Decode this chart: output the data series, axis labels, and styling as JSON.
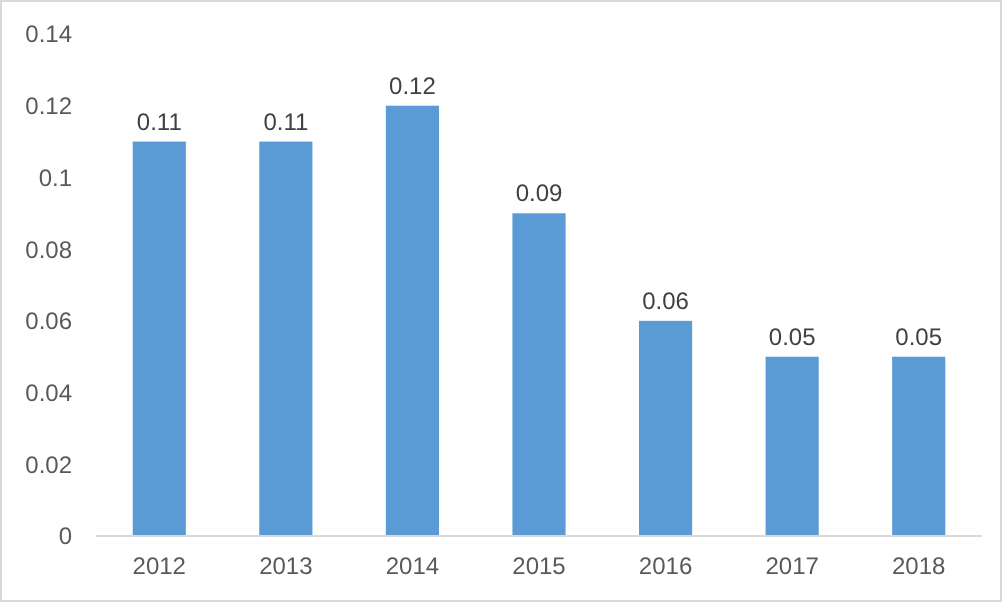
{
  "chart_data": {
    "type": "bar",
    "categories": [
      "2012",
      "2013",
      "2014",
      "2015",
      "2016",
      "2017",
      "2018"
    ],
    "values": [
      0.11,
      0.11,
      0.12,
      0.09,
      0.06,
      0.05,
      0.05
    ],
    "color": "#5b9bd5",
    "ylim": [
      0,
      0.14
    ],
    "yticks": [
      0,
      0.02,
      0.04,
      0.06,
      0.08,
      0.1,
      0.12,
      0.14
    ],
    "grid": false,
    "data_labels": true
  }
}
